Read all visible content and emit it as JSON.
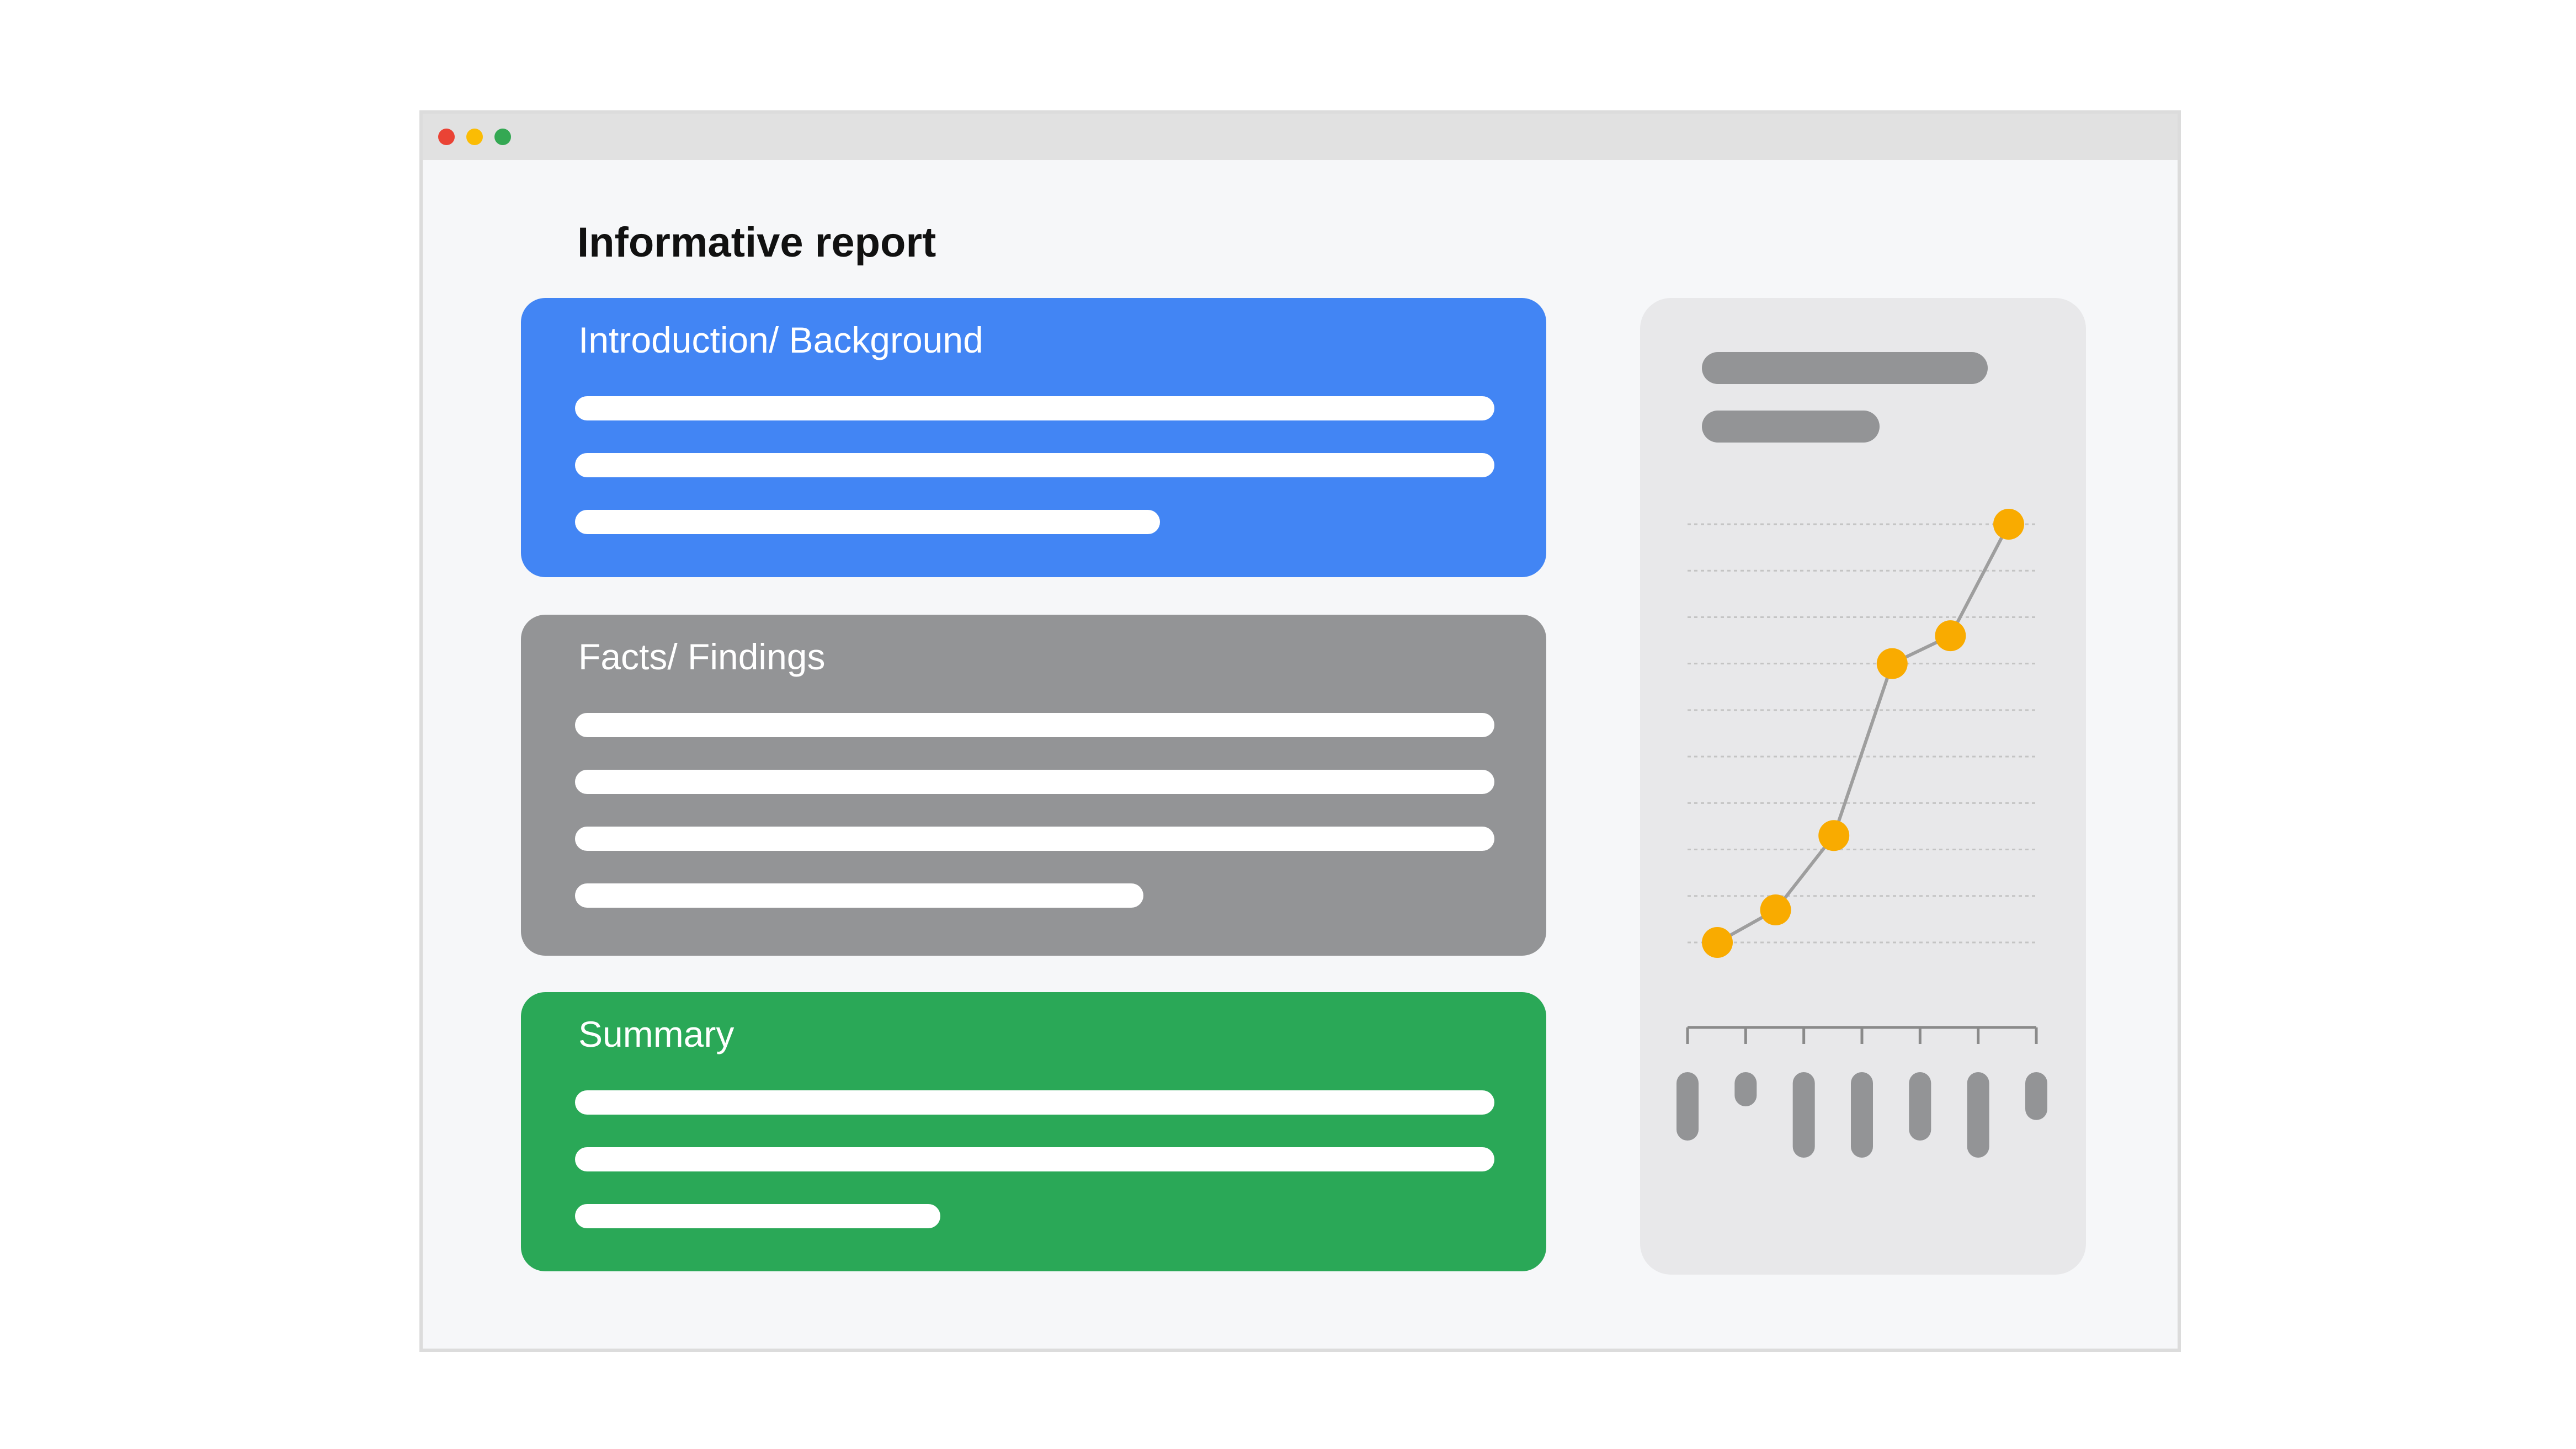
{
  "window": {
    "traffic_lights": [
      {
        "name": "close-dot",
        "color": "#ea4335"
      },
      {
        "name": "minimize-dot",
        "color": "#fbbc04"
      },
      {
        "name": "maximize-dot",
        "color": "#34a853"
      }
    ]
  },
  "report": {
    "title": "Informative report",
    "sections": [
      {
        "heading": "Introduction/ Background",
        "color": "#4285f4",
        "line_count": 3
      },
      {
        "heading": "Facts/ Findings",
        "color": "#939496",
        "line_count": 4
      },
      {
        "heading": "Summary",
        "color": "#2aa857",
        "line_count": 3
      }
    ]
  },
  "chart_data": {
    "type": "line",
    "title": "",
    "xlabel": "",
    "ylabel": "",
    "x": [
      1,
      2,
      3,
      4,
      5,
      6
    ],
    "series": [
      {
        "values": [
          0,
          0.7,
          2.3,
          6,
          6.6,
          9
        ],
        "color": "#f9ab00",
        "line_color": "#9e9e9e"
      }
    ],
    "ylim": [
      0,
      9
    ],
    "grid": true,
    "bar_strip": {
      "values": [
        2,
        1,
        2.5,
        2.5,
        2,
        2.5,
        1.4
      ],
      "color": "#939496"
    }
  }
}
